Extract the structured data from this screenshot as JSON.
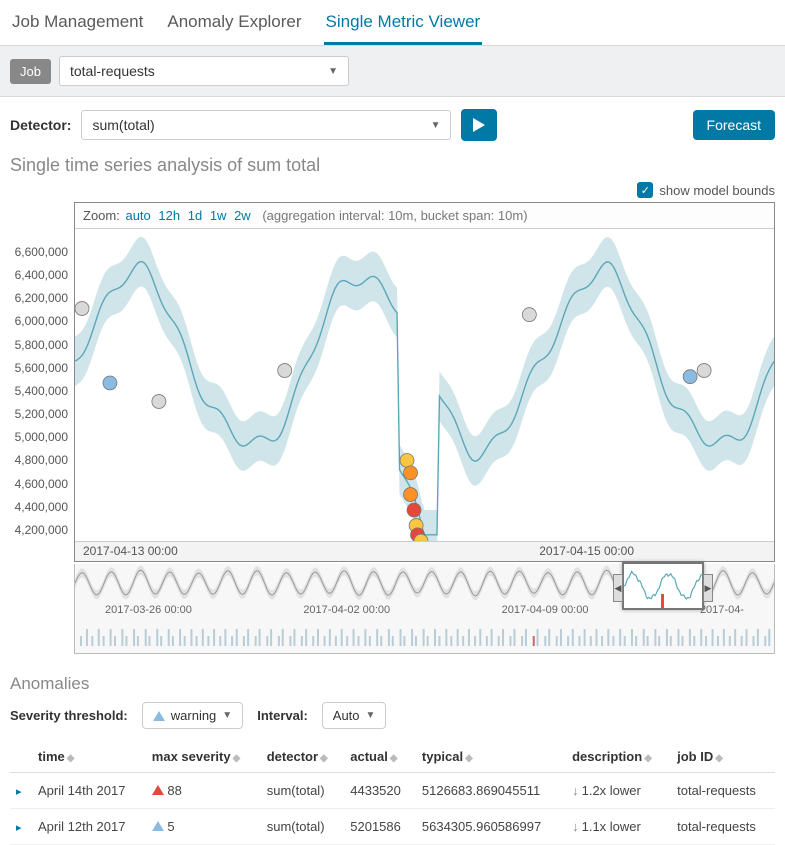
{
  "tabs": {
    "job_management": "Job Management",
    "anomaly_explorer": "Anomaly Explorer",
    "single_metric": "Single Metric Viewer"
  },
  "jobbar": {
    "label": "Job",
    "selected": "total-requests"
  },
  "detector": {
    "label": "Detector:",
    "selected": "sum(total)",
    "forecast": "Forecast"
  },
  "chart": {
    "title": "Single time series analysis of sum total",
    "show_bounds": "show model bounds",
    "zoom_label": "Zoom:",
    "zoom_auto": "auto",
    "zoom_opts": [
      "12h",
      "1d",
      "1w",
      "2w"
    ],
    "agg": "(aggregation interval: 10m, bucket span: 10m)",
    "y_ticks": [
      "6,600,000",
      "6,400,000",
      "6,200,000",
      "6,000,000",
      "5,800,000",
      "5,600,000",
      "5,400,000",
      "5,200,000",
      "5,000,000",
      "4,800,000",
      "4,600,000",
      "4,400,000",
      "4,200,000"
    ],
    "x_ticks": [
      "2017-04-13 00:00",
      "2017-04-15 00:00"
    ],
    "series_color": "#5ba7b8",
    "band_color": "#a8d0d9",
    "band_opacity": 0.55,
    "anomaly_markers": [
      {
        "x": 0.01,
        "y": 0.25,
        "color": "#d9d9d9"
      },
      {
        "x": 0.05,
        "y": 0.49,
        "color": "#8bbbe0"
      },
      {
        "x": 0.12,
        "y": 0.55,
        "color": "#d9d9d9"
      },
      {
        "x": 0.3,
        "y": 0.45,
        "color": "#d9d9d9"
      },
      {
        "x": 0.475,
        "y": 0.74,
        "color": "#f9c642"
      },
      {
        "x": 0.48,
        "y": 0.78,
        "color": "#fd9126"
      },
      {
        "x": 0.48,
        "y": 0.85,
        "color": "#fd9126"
      },
      {
        "x": 0.485,
        "y": 0.9,
        "color": "#e7463c"
      },
      {
        "x": 0.488,
        "y": 0.95,
        "color": "#f9c642"
      },
      {
        "x": 0.49,
        "y": 0.98,
        "color": "#e7463c"
      },
      {
        "x": 0.495,
        "y": 1.0,
        "color": "#f9c642"
      },
      {
        "x": 0.65,
        "y": 0.27,
        "color": "#d9d9d9"
      },
      {
        "x": 0.88,
        "y": 0.47,
        "color": "#8bbbe0"
      },
      {
        "x": 0.9,
        "y": 0.45,
        "color": "#d9d9d9"
      }
    ],
    "overview_dates": [
      "2017-03-26 00:00",
      "2017-04-02 00:00",
      "2017-04-09 00:00",
      "2017-04-"
    ]
  },
  "anomalies": {
    "heading": "Anomalies",
    "severity_label": "Severity threshold:",
    "severity_value": "warning",
    "interval_label": "Interval:",
    "interval_value": "Auto",
    "columns": {
      "time": "time",
      "max_severity": "max severity",
      "detector": "detector",
      "actual": "actual",
      "typical": "typical",
      "description": "description",
      "job_id": "job ID"
    },
    "rows": [
      {
        "time": "April 14th 2017",
        "severity": "88",
        "sev_color": "red",
        "detector": "sum(total)",
        "actual": "4433520",
        "typical": "5126683.869045511",
        "description": "1.2x lower",
        "job_id": "total-requests"
      },
      {
        "time": "April 12th 2017",
        "severity": "5",
        "sev_color": "blue",
        "detector": "sum(total)",
        "actual": "5201586",
        "typical": "5634305.960586997",
        "description": "1.1x lower",
        "job_id": "total-requests"
      }
    ]
  }
}
